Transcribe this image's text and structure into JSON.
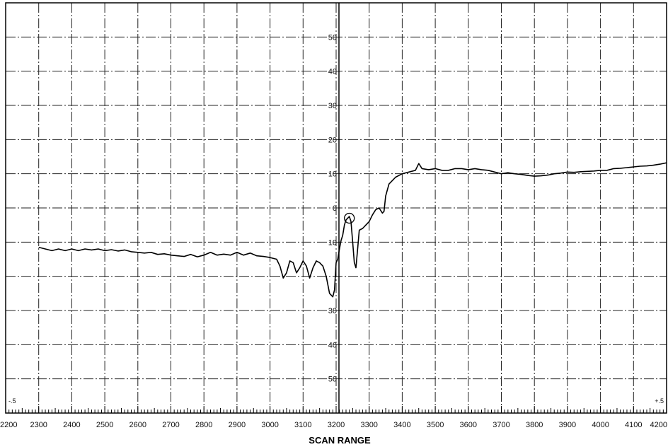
{
  "chart_data": {
    "type": "line",
    "title": "",
    "xlabel": "SCAN RANGE",
    "ylabel": "",
    "xlim": [
      2200,
      4200
    ],
    "ylim": [
      -60,
      60
    ],
    "grid": true,
    "x_ticks": [
      2200,
      2300,
      2400,
      2500,
      2600,
      2700,
      2800,
      2900,
      3000,
      3100,
      3200,
      3300,
      3400,
      3500,
      3600,
      3700,
      3800,
      3900,
      4000,
      4100,
      4200
    ],
    "y_tick_labels": [
      {
        "value": 50,
        "label": "50"
      },
      {
        "value": 40,
        "label": "40"
      },
      {
        "value": 30,
        "label": "30"
      },
      {
        "value": 20,
        "label": "20"
      },
      {
        "value": 10,
        "label": "10"
      },
      {
        "value": 0,
        "label": "0"
      },
      {
        "value": -10,
        "label": "10"
      },
      {
        "value": -30,
        "label": "30"
      },
      {
        "value": -40,
        "label": "40"
      },
      {
        "value": -50,
        "label": "50"
      }
    ],
    "corner_labels": {
      "left": "-.5",
      "right": "+.5"
    },
    "marker": {
      "x": 3240,
      "y": -3,
      "shape": "circle"
    },
    "series": [
      {
        "x": [
          2300,
          2320,
          2340,
          2360,
          2380,
          2400,
          2420,
          2440,
          2460,
          2480,
          2500,
          2520,
          2540,
          2560,
          2580,
          2600,
          2620,
          2640,
          2660,
          2680,
          2700,
          2720,
          2740,
          2760,
          2780,
          2800,
          2820,
          2840,
          2860,
          2880,
          2900,
          2920,
          2940,
          2960,
          2980,
          3000,
          3020,
          3030,
          3040,
          3050,
          3060,
          3070,
          3080,
          3090,
          3100,
          3110,
          3120,
          3130,
          3140,
          3150,
          3160,
          3170,
          3180,
          3190,
          3195,
          3200,
          3205,
          3210,
          3215,
          3220,
          3225,
          3230,
          3240,
          3245,
          3250,
          3255,
          3260,
          3265,
          3270,
          3280,
          3290,
          3300,
          3310,
          3320,
          3330,
          3340,
          3345,
          3350,
          3360,
          3380,
          3400,
          3420,
          3440,
          3450,
          3460,
          3480,
          3500,
          3520,
          3540,
          3560,
          3580,
          3600,
          3620,
          3640,
          3660,
          3680,
          3700,
          3720,
          3740,
          3760,
          3780,
          3800,
          3820,
          3840,
          3860,
          3880,
          3900,
          3920,
          3940,
          3960,
          3980,
          4000,
          4020,
          4040,
          4060,
          4080,
          4100,
          4120,
          4140,
          4160,
          4180,
          4200
        ],
        "y": [
          -11.5,
          -12,
          -12.5,
          -12,
          -12.5,
          -12,
          -12.5,
          -12,
          -12.3,
          -12,
          -12.5,
          -12.2,
          -12.6,
          -12.3,
          -12.8,
          -13,
          -13.2,
          -13,
          -13.6,
          -13.4,
          -13.8,
          -14,
          -14.2,
          -13.6,
          -14.3,
          -13.8,
          -13,
          -13.8,
          -13.5,
          -13.8,
          -13,
          -13.8,
          -13.2,
          -14,
          -14.2,
          -14.5,
          -15,
          -17,
          -20.5,
          -19,
          -15.5,
          -16,
          -19,
          -17.5,
          -15.5,
          -17,
          -20.5,
          -17.5,
          -15.5,
          -16,
          -17,
          -20,
          -25,
          -26,
          -24,
          -16,
          -15,
          -12,
          -9.5,
          -8,
          -5,
          -3.5,
          -2.5,
          -4,
          -10,
          -16,
          -17.5,
          -12,
          -6.5,
          -6,
          -5,
          -4,
          -2,
          -0.5,
          0,
          -1.5,
          -1,
          3.5,
          7,
          9,
          10,
          10.5,
          11,
          13,
          11.5,
          11.2,
          11.5,
          11,
          11,
          11.5,
          11.5,
          11.2,
          11.5,
          11.2,
          11,
          10.5,
          10,
          10.3,
          10,
          9.8,
          9.5,
          9.3,
          9.4,
          9.6,
          10,
          10.2,
          10.5,
          10.4,
          10.6,
          10.7,
          10.8,
          11,
          11,
          11.5,
          11.6,
          11.8,
          12,
          12.2,
          12.3,
          12.5,
          12.8,
          13.2
        ]
      }
    ]
  }
}
